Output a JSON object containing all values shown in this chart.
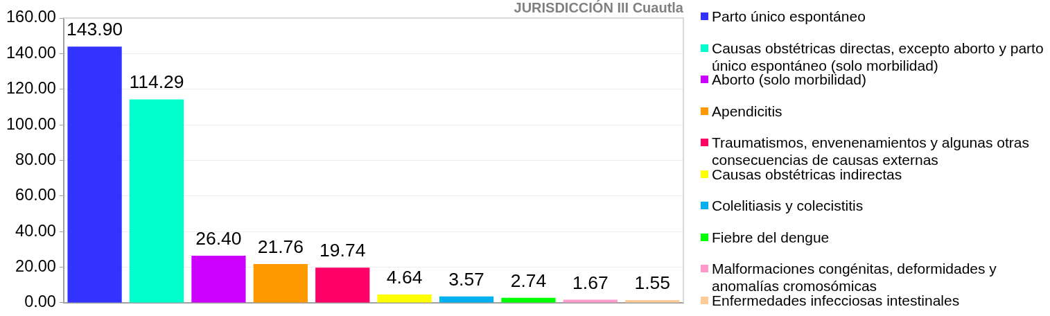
{
  "chart_data": {
    "type": "bar",
    "title": "JURISDICCIÓN III Cuautla",
    "categories": [
      null
    ],
    "series": [
      {
        "name": "Parto único espontáneo",
        "color": "#3333ff",
        "values": [
          143.9
        ],
        "value_labels": [
          "143.90"
        ]
      },
      {
        "name": "Causas obstétricas directas, excepto aborto y parto único espontáneo (solo morbilidad)",
        "color": "#00ffcc",
        "values": [
          114.29
        ],
        "value_labels": [
          "114.29"
        ]
      },
      {
        "name": "Aborto (solo morbilidad)",
        "color": "#cc00ff",
        "values": [
          26.4
        ],
        "value_labels": [
          "26.40"
        ]
      },
      {
        "name": "Apendicitis",
        "color": "#ff9900",
        "values": [
          21.76
        ],
        "value_labels": [
          "21.76"
        ]
      },
      {
        "name": "Traumatismos, envenenamientos y algunas otras consecuencias de causas externas",
        "color": "#ff0066",
        "values": [
          19.74
        ],
        "value_labels": [
          "19.74"
        ]
      },
      {
        "name": "Causas obstétricas indirectas",
        "color": "#ffff00",
        "values": [
          4.64
        ],
        "value_labels": [
          "4.64"
        ]
      },
      {
        "name": "Colelitiasis y colecistitis",
        "color": "#00b0f0",
        "values": [
          3.57
        ],
        "value_labels": [
          "3.57"
        ]
      },
      {
        "name": "Fiebre del dengue",
        "color": "#00ff00",
        "values": [
          2.74
        ],
        "value_labels": [
          "2.74"
        ]
      },
      {
        "name": "Malformaciones congénitas, deformidades y anomalías cromosómicas",
        "color": "#ff99cc",
        "values": [
          1.67
        ],
        "value_labels": [
          "1.67"
        ]
      },
      {
        "name": "Enfermedades infecciosas intestinales",
        "color": "#ffcc99",
        "values": [
          1.55
        ],
        "value_labels": [
          "1.55"
        ]
      }
    ],
    "ylim": [
      0,
      160
    ],
    "yticks": [
      {
        "value": 0,
        "label": "0.00"
      },
      {
        "value": 20,
        "label": "20.00"
      },
      {
        "value": 40,
        "label": "40.00"
      },
      {
        "value": 60,
        "label": "60.00"
      },
      {
        "value": 80,
        "label": "80.00"
      },
      {
        "value": 100,
        "label": "100.00"
      },
      {
        "value": 120,
        "label": "120.00"
      },
      {
        "value": 140,
        "label": "140.00"
      },
      {
        "value": 160,
        "label": "160.00"
      }
    ],
    "grid": "y",
    "legend": "right",
    "tick_labels": "y"
  }
}
